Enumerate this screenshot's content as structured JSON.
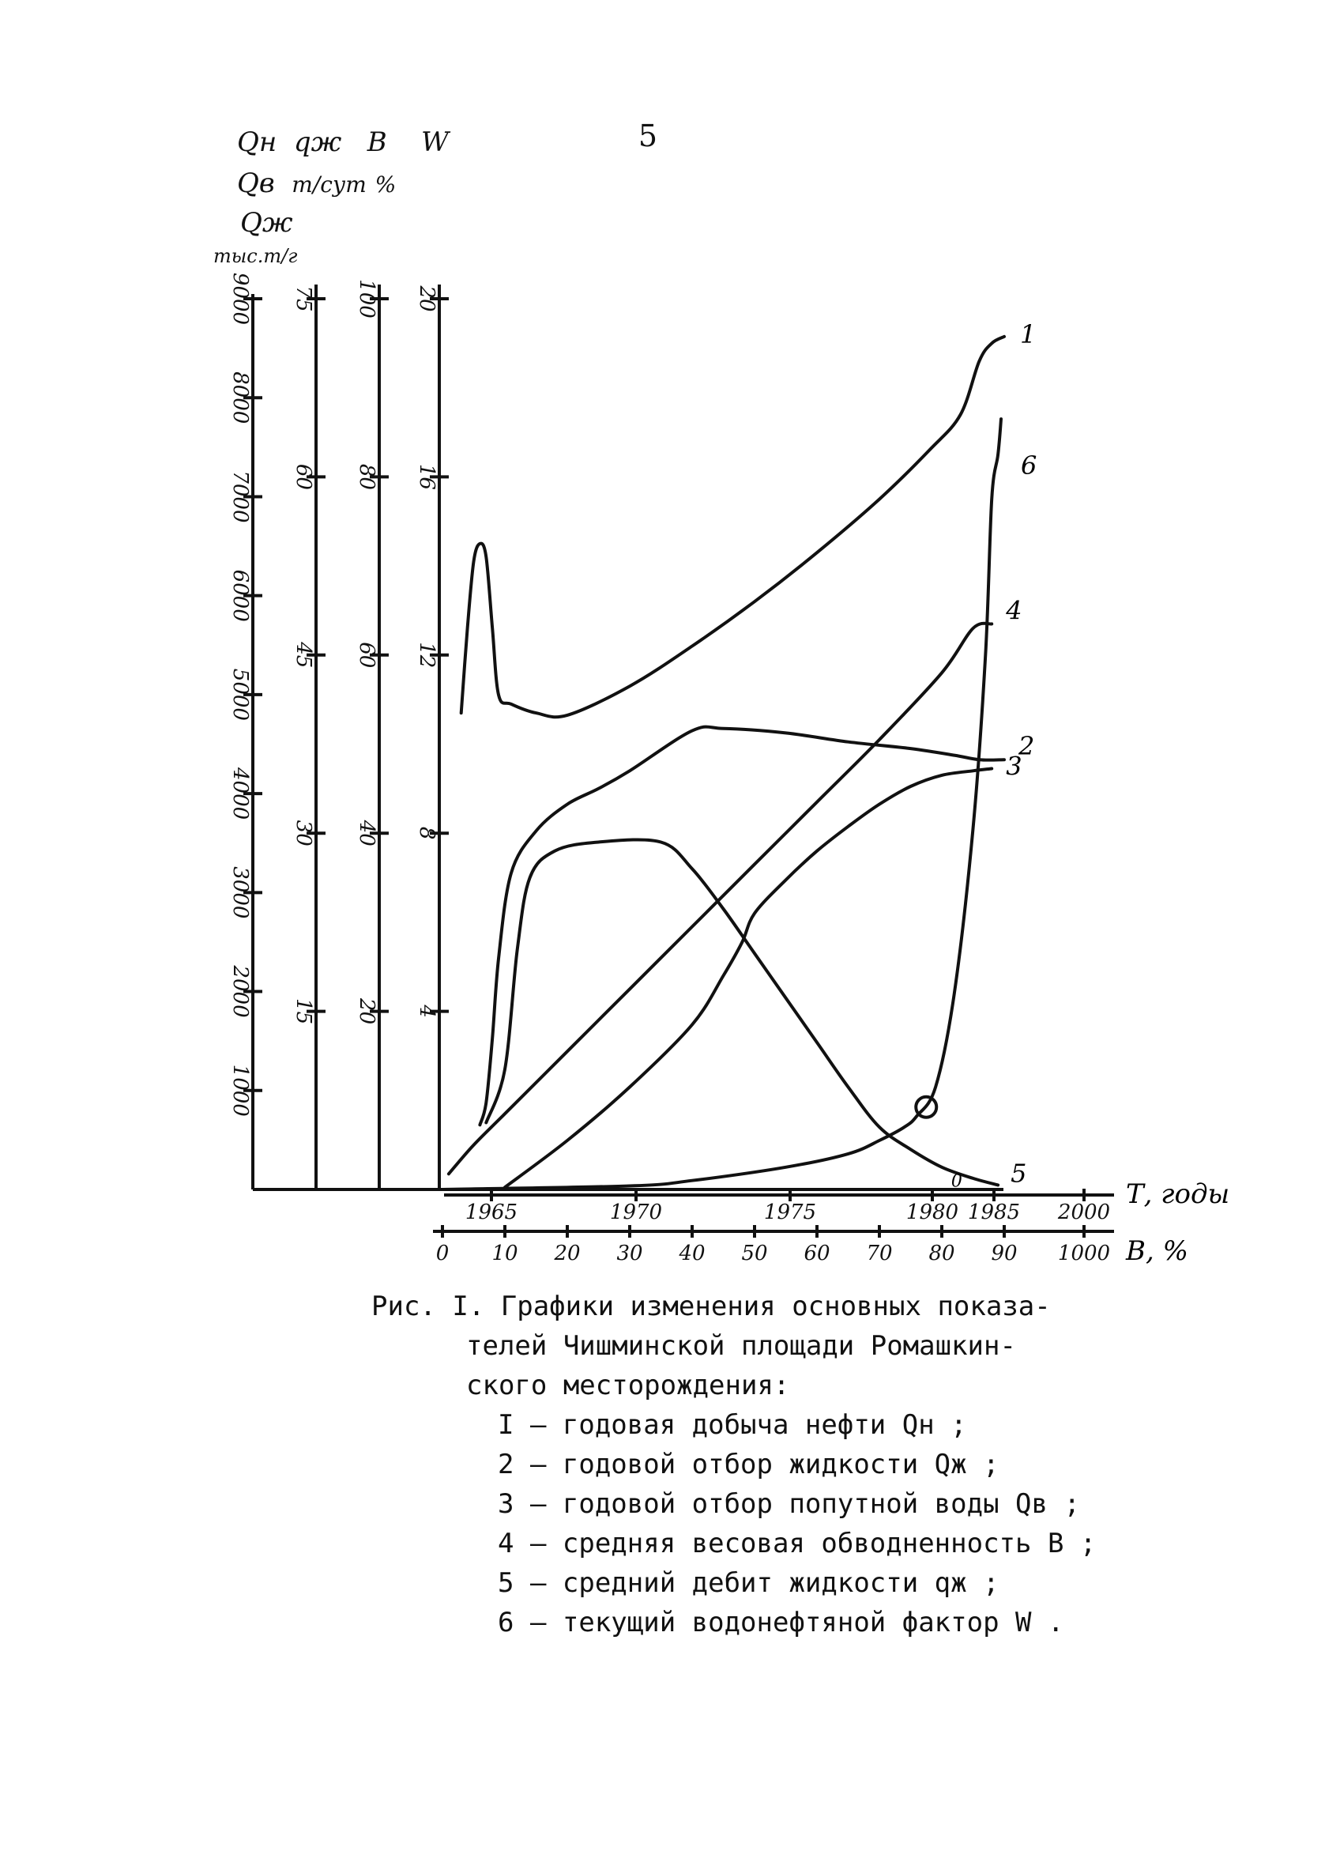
{
  "page_number": "5",
  "headers": {
    "row1": [
      "Qн",
      "qж",
      "B",
      "W"
    ],
    "row2": [
      "Qв",
      "т/сут",
      "%"
    ],
    "row3": "Qж",
    "row4": "тыс.т/г"
  },
  "chart_data": {
    "type": "line",
    "title": "",
    "y_axes": [
      {
        "label": "Qн Qв Qж тыс.т/г",
        "min": 0,
        "max": 9000,
        "ticks": [
          1000,
          2000,
          3000,
          4000,
          5000,
          6000,
          7000,
          8000,
          9000
        ]
      },
      {
        "label": "qж т/сут",
        "min": 0,
        "max": 75,
        "ticks": [
          15,
          30,
          45,
          60,
          75
        ]
      },
      {
        "label": "B %",
        "min": 0,
        "max": 100,
        "ticks": [
          20,
          40,
          60,
          80,
          100
        ]
      },
      {
        "label": "W",
        "min": 0,
        "max": 20,
        "ticks": [
          4,
          8,
          12,
          16,
          20
        ]
      }
    ],
    "x_axes": [
      {
        "label": "Т, годы",
        "min": 1963,
        "max": 2000,
        "ticks": [
          1965,
          1970,
          1975,
          1980,
          1985,
          2000
        ],
        "tick_labels": [
          "1965",
          "1970",
          "1975",
          "1980",
          "1985",
          "2000"
        ]
      },
      {
        "label": "В, %",
        "min": 0,
        "max": 1000,
        "ticks": [
          0,
          10,
          20,
          30,
          40,
          50,
          60,
          70,
          80,
          90,
          1000
        ],
        "tick_labels": [
          "0",
          "10",
          "20",
          "30",
          "40",
          "50",
          "60",
          "70",
          "80",
          "90",
          "1000"
        ]
      }
    ],
    "series": [
      {
        "name": "1",
        "axis": "Qн (W scale)",
        "points": [
          [
            3,
            10.7
          ],
          [
            4,
            12.6
          ],
          [
            5,
            14.1
          ],
          [
            6,
            14.5
          ],
          [
            7,
            14.2
          ],
          [
            8,
            12.6
          ],
          [
            9,
            11.1
          ],
          [
            11,
            10.9
          ],
          [
            15,
            10.7
          ],
          [
            20,
            10.65
          ],
          [
            30,
            11.3
          ],
          [
            40,
            12.2
          ],
          [
            50,
            13.2
          ],
          [
            60,
            14.3
          ],
          [
            70,
            15.5
          ],
          [
            78,
            16.6
          ],
          [
            83,
            17.4
          ],
          [
            86,
            18.6
          ],
          [
            88,
            19.0
          ],
          [
            90,
            19.15
          ]
        ]
      },
      {
        "name": "2",
        "axis": "Qж (W scale)",
        "points": [
          [
            6,
            1.45
          ],
          [
            7,
            1.95
          ],
          [
            8,
            3.4
          ],
          [
            9,
            5.2
          ],
          [
            11,
            7.1
          ],
          [
            15,
            8.05
          ],
          [
            20,
            8.65
          ],
          [
            25,
            9.0
          ],
          [
            30,
            9.4
          ],
          [
            40,
            10.3
          ],
          [
            45,
            10.35
          ],
          [
            55,
            10.25
          ],
          [
            65,
            10.05
          ],
          [
            75,
            9.9
          ],
          [
            82,
            9.75
          ],
          [
            86,
            9.65
          ],
          [
            90,
            9.65
          ]
        ]
      },
      {
        "name": "3",
        "axis": "Qв (W scale)",
        "points": [
          [
            10,
            0.05
          ],
          [
            20,
            1.1
          ],
          [
            30,
            2.3
          ],
          [
            40,
            3.7
          ],
          [
            45,
            4.8
          ],
          [
            48,
            5.55
          ],
          [
            50,
            6.2
          ],
          [
            55,
            6.95
          ],
          [
            60,
            7.6
          ],
          [
            65,
            8.15
          ],
          [
            70,
            8.65
          ],
          [
            75,
            9.05
          ],
          [
            80,
            9.3
          ],
          [
            85,
            9.4
          ],
          [
            88,
            9.45
          ]
        ]
      },
      {
        "name": "4",
        "axis": "B (W scale)",
        "points": [
          [
            1,
            0.35
          ],
          [
            5,
            1.0
          ],
          [
            10,
            1.7
          ],
          [
            20,
            3.1
          ],
          [
            30,
            4.5
          ],
          [
            40,
            5.9
          ],
          [
            50,
            7.3
          ],
          [
            60,
            8.7
          ],
          [
            70,
            10.1
          ],
          [
            80,
            11.6
          ],
          [
            85,
            12.6
          ],
          [
            88,
            12.7
          ]
        ]
      },
      {
        "name": "5",
        "axis": "qж (W scale)",
        "points": [
          [
            7,
            1.5
          ],
          [
            10,
            2.7
          ],
          [
            12,
            5.4
          ],
          [
            14,
            7.0
          ],
          [
            18,
            7.6
          ],
          [
            25,
            7.8
          ],
          [
            35,
            7.8
          ],
          [
            40,
            7.2
          ],
          [
            45,
            6.3
          ],
          [
            50,
            5.3
          ],
          [
            55,
            4.3
          ],
          [
            60,
            3.3
          ],
          [
            65,
            2.3
          ],
          [
            70,
            1.4
          ],
          [
            75,
            0.9
          ],
          [
            80,
            0.5
          ],
          [
            85,
            0.25
          ],
          [
            89,
            0.1
          ]
        ]
      },
      {
        "name": "6",
        "axis": "W",
        "points": [
          [
            0,
            0.0
          ],
          [
            30,
            0.08
          ],
          [
            40,
            0.2
          ],
          [
            55,
            0.5
          ],
          [
            65,
            0.8
          ],
          [
            70,
            1.1
          ],
          [
            74,
            1.4
          ],
          [
            76,
            1.65
          ],
          [
            79,
            2.3
          ],
          [
            82,
            4.4
          ],
          [
            85,
            8.1
          ],
          [
            87,
            12.0
          ],
          [
            88,
            15.5
          ],
          [
            89,
            16.5
          ],
          [
            89.5,
            17.3
          ]
        ]
      }
    ],
    "annotations": [
      {
        "text": "0",
        "near": "curve 6, x≈78"
      },
      {
        "text": "0",
        "near": "curve 1 end, x≈82"
      }
    ],
    "grid": false,
    "legend": "caption-below"
  },
  "axis_titles": {
    "x_top": "Т, годы",
    "x_bottom": "В, %"
  },
  "caption": {
    "line1": "Рис. I. Графики изменения основных показа-",
    "line2": "телей Чишминской площади Ромашкин-",
    "line3": "ского месторождения:",
    "items": [
      "I – годовая добыча нефти  Qн  ;",
      "2 – годовой отбор жидкости  Qж  ;",
      "3 – годовой отбор попутной воды  Qв  ;",
      "4 – средняя весовая обводненность  В  ;",
      "5 – средний дебит жидкости  qж  ;",
      "6 – текущий водонефтяной фактор  W  ."
    ]
  }
}
